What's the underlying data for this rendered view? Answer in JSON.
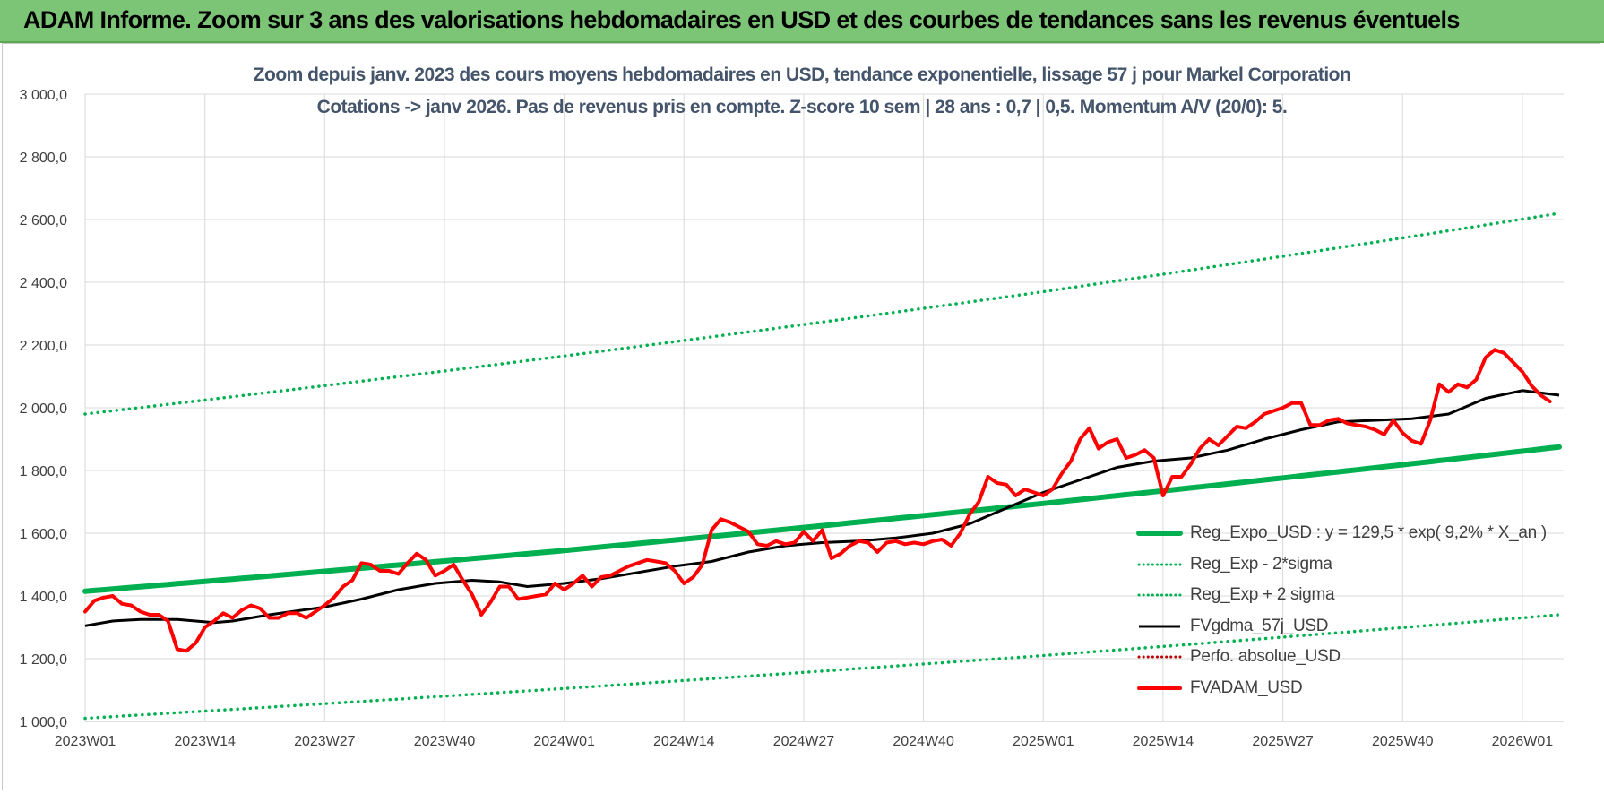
{
  "banner": {
    "title": "ADAM Informe. Zoom sur 3 ans des valorisations hebdomadaires en USD et des courbes de tendances sans les revenus éventuels"
  },
  "colors": {
    "banner_bg": "#7cc576",
    "title_text": "#44546a",
    "reg_expo": "#00b050",
    "fvgdma": "#000000",
    "perfo": "#c00000",
    "fvadam": "#ff0000"
  },
  "chart_data": {
    "type": "line",
    "title_line1": "Zoom depuis janv. 2023 des cours moyens hebdomadaires en USD, tendance exponentielle, lissage 57 j pour Markel Corporation",
    "title_line2": "Cotations -> janv 2026. Pas de revenus pris en compte. Z-score 10 sem | 28 ans : 0,7 | 0,5. Momentum A/V (20/0): 5.",
    "xlabel": "",
    "ylabel": "",
    "ylim": [
      1000,
      3000
    ],
    "yticks": [
      "3 000,0",
      "2 800,0",
      "2 600,0",
      "2 400,0",
      "2 200,0",
      "2 000,0",
      "1 800,0",
      "1 600,0",
      "1 400,0",
      "1 200,0",
      "1 000,0"
    ],
    "x_tick_labels": [
      "2023W01",
      "2023W14",
      "2023W27",
      "2023W40",
      "2024W01",
      "2024W14",
      "2024W27",
      "2024W40",
      "2025W01",
      "2025W14",
      "2025W27",
      "2025W40",
      "2026W01"
    ],
    "x_tick_weeks": [
      0,
      13,
      26,
      39,
      52,
      65,
      78,
      91,
      104,
      117,
      130,
      143,
      156
    ],
    "x_range_weeks": [
      0,
      160
    ],
    "grid": true,
    "legend_position": "right",
    "series": [
      {
        "name": "Reg_Expo_USD : y = 129,5 * exp( 9,2% *  X_an )",
        "style": "thick-solid",
        "color": "#00b050",
        "points": [
          [
            0,
            1415
          ],
          [
            52,
            1545
          ],
          [
            104,
            1695
          ],
          [
            160,
            1875
          ]
        ]
      },
      {
        "name": "Reg_Exp - 2*sigma",
        "style": "dotted",
        "color": "#00b050",
        "points": [
          [
            0,
            1010
          ],
          [
            52,
            1105
          ],
          [
            104,
            1210
          ],
          [
            160,
            1340
          ]
        ]
      },
      {
        "name": "Reg_Exp + 2 sigma",
        "style": "dotted",
        "color": "#00b050",
        "points": [
          [
            0,
            1980
          ],
          [
            52,
            2165
          ],
          [
            104,
            2370
          ],
          [
            160,
            2620
          ]
        ]
      },
      {
        "name": "FVgdma_57j_USD",
        "style": "solid",
        "color": "#000000",
        "points": [
          [
            0,
            1305
          ],
          [
            3,
            1320
          ],
          [
            6,
            1325
          ],
          [
            10,
            1325
          ],
          [
            14,
            1315
          ],
          [
            16,
            1320
          ],
          [
            20,
            1340
          ],
          [
            26,
            1365
          ],
          [
            30,
            1390
          ],
          [
            34,
            1420
          ],
          [
            38,
            1440
          ],
          [
            42,
            1450
          ],
          [
            45,
            1445
          ],
          [
            48,
            1430
          ],
          [
            52,
            1440
          ],
          [
            56,
            1455
          ],
          [
            60,
            1475
          ],
          [
            64,
            1495
          ],
          [
            68,
            1510
          ],
          [
            72,
            1540
          ],
          [
            76,
            1560
          ],
          [
            80,
            1570
          ],
          [
            84,
            1575
          ],
          [
            88,
            1585
          ],
          [
            92,
            1600
          ],
          [
            96,
            1630
          ],
          [
            100,
            1680
          ],
          [
            104,
            1730
          ],
          [
            108,
            1770
          ],
          [
            112,
            1810
          ],
          [
            116,
            1830
          ],
          [
            120,
            1840
          ],
          [
            124,
            1865
          ],
          [
            128,
            1900
          ],
          [
            132,
            1930
          ],
          [
            136,
            1955
          ],
          [
            140,
            1960
          ],
          [
            144,
            1965
          ],
          [
            148,
            1980
          ],
          [
            152,
            2030
          ],
          [
            156,
            2055
          ],
          [
            160,
            2040
          ]
        ]
      },
      {
        "name": "Perfo. absolue_USD",
        "style": "dotted",
        "color": "#c00000",
        "points": []
      },
      {
        "name": "FVADAM_USD",
        "style": "thick-solid",
        "color": "#ff0000",
        "points": [
          [
            0,
            1350
          ],
          [
            1,
            1385
          ],
          [
            2,
            1395
          ],
          [
            3,
            1400
          ],
          [
            4,
            1375
          ],
          [
            5,
            1370
          ],
          [
            6,
            1350
          ],
          [
            7,
            1340
          ],
          [
            8,
            1340
          ],
          [
            9,
            1320
          ],
          [
            10,
            1230
          ],
          [
            11,
            1225
          ],
          [
            12,
            1250
          ],
          [
            13,
            1300
          ],
          [
            14,
            1320
          ],
          [
            15,
            1345
          ],
          [
            16,
            1330
          ],
          [
            17,
            1355
          ],
          [
            18,
            1370
          ],
          [
            19,
            1360
          ],
          [
            20,
            1330
          ],
          [
            21,
            1330
          ],
          [
            22,
            1345
          ],
          [
            23,
            1345
          ],
          [
            24,
            1330
          ],
          [
            25,
            1350
          ],
          [
            26,
            1370
          ],
          [
            27,
            1395
          ],
          [
            28,
            1430
          ],
          [
            29,
            1450
          ],
          [
            30,
            1505
          ],
          [
            31,
            1500
          ],
          [
            32,
            1480
          ],
          [
            33,
            1480
          ],
          [
            34,
            1470
          ],
          [
            35,
            1505
          ],
          [
            36,
            1535
          ],
          [
            37,
            1515
          ],
          [
            38,
            1465
          ],
          [
            39,
            1480
          ],
          [
            40,
            1500
          ],
          [
            41,
            1450
          ],
          [
            42,
            1405
          ],
          [
            43,
            1340
          ],
          [
            44,
            1380
          ],
          [
            45,
            1430
          ],
          [
            46,
            1430
          ],
          [
            47,
            1390
          ],
          [
            48,
            1395
          ],
          [
            49,
            1400
          ],
          [
            50,
            1405
          ],
          [
            51,
            1440
          ],
          [
            52,
            1420
          ],
          [
            53,
            1440
          ],
          [
            54,
            1465
          ],
          [
            55,
            1430
          ],
          [
            56,
            1460
          ],
          [
            57,
            1465
          ],
          [
            58,
            1480
          ],
          [
            59,
            1495
          ],
          [
            60,
            1505
          ],
          [
            61,
            1515
          ],
          [
            62,
            1510
          ],
          [
            63,
            1505
          ],
          [
            64,
            1480
          ],
          [
            65,
            1440
          ],
          [
            66,
            1460
          ],
          [
            67,
            1500
          ],
          [
            68,
            1610
          ],
          [
            69,
            1645
          ],
          [
            70,
            1635
          ],
          [
            71,
            1620
          ],
          [
            72,
            1605
          ],
          [
            73,
            1565
          ],
          [
            74,
            1560
          ],
          [
            75,
            1575
          ],
          [
            76,
            1565
          ],
          [
            77,
            1570
          ],
          [
            78,
            1605
          ],
          [
            79,
            1575
          ],
          [
            80,
            1610
          ],
          [
            81,
            1520
          ],
          [
            82,
            1535
          ],
          [
            83,
            1560
          ],
          [
            84,
            1575
          ],
          [
            85,
            1570
          ],
          [
            86,
            1540
          ],
          [
            87,
            1570
          ],
          [
            88,
            1575
          ],
          [
            89,
            1565
          ],
          [
            90,
            1570
          ],
          [
            91,
            1565
          ],
          [
            92,
            1575
          ],
          [
            93,
            1580
          ],
          [
            94,
            1560
          ],
          [
            95,
            1600
          ],
          [
            96,
            1660
          ],
          [
            97,
            1700
          ],
          [
            98,
            1780
          ],
          [
            99,
            1760
          ],
          [
            100,
            1755
          ],
          [
            101,
            1720
          ],
          [
            102,
            1740
          ],
          [
            103,
            1730
          ],
          [
            104,
            1720
          ],
          [
            105,
            1740
          ],
          [
            106,
            1790
          ],
          [
            107,
            1830
          ],
          [
            108,
            1900
          ],
          [
            109,
            1935
          ],
          [
            110,
            1870
          ],
          [
            111,
            1890
          ],
          [
            112,
            1900
          ],
          [
            113,
            1840
          ],
          [
            114,
            1850
          ],
          [
            115,
            1865
          ],
          [
            116,
            1840
          ],
          [
            117,
            1720
          ],
          [
            118,
            1780
          ],
          [
            119,
            1780
          ],
          [
            120,
            1820
          ],
          [
            121,
            1870
          ],
          [
            122,
            1900
          ],
          [
            123,
            1880
          ],
          [
            124,
            1910
          ],
          [
            125,
            1940
          ],
          [
            126,
            1935
          ],
          [
            127,
            1955
          ],
          [
            128,
            1980
          ],
          [
            129,
            1990
          ],
          [
            130,
            2000
          ],
          [
            131,
            2015
          ],
          [
            132,
            2015
          ],
          [
            133,
            1945
          ],
          [
            134,
            1945
          ],
          [
            135,
            1960
          ],
          [
            136,
            1965
          ],
          [
            137,
            1950
          ],
          [
            138,
            1945
          ],
          [
            139,
            1940
          ],
          [
            140,
            1930
          ],
          [
            141,
            1915
          ],
          [
            142,
            1960
          ],
          [
            143,
            1920
          ],
          [
            144,
            1895
          ],
          [
            145,
            1885
          ],
          [
            146,
            1960
          ],
          [
            147,
            2075
          ],
          [
            148,
            2050
          ],
          [
            149,
            2075
          ],
          [
            150,
            2065
          ],
          [
            151,
            2090
          ],
          [
            152,
            2160
          ],
          [
            153,
            2185
          ],
          [
            154,
            2175
          ],
          [
            155,
            2145
          ],
          [
            156,
            2115
          ],
          [
            157,
            2070
          ],
          [
            158,
            2040
          ],
          [
            159,
            2020
          ]
        ]
      }
    ]
  }
}
